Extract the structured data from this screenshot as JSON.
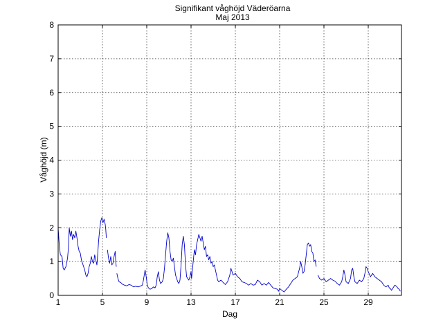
{
  "chart_data": {
    "type": "line",
    "title": "Signifikant våghöjd Väderöarna",
    "subtitle": "Maj 2013",
    "xlabel": "Dag",
    "ylabel": "Våghöjd (m)",
    "xlim": [
      1,
      32
    ],
    "ylim": [
      0,
      8
    ],
    "xticks": [
      1,
      5,
      9,
      13,
      17,
      21,
      25,
      29
    ],
    "yticks": [
      0,
      1,
      2,
      3,
      4,
      5,
      6,
      7,
      8
    ],
    "grid": true,
    "line_color": "#0000cc",
    "series": [
      {
        "segments": [
          [
            [
              1.0,
              2.0
            ],
            [
              1.1,
              1.5
            ],
            [
              1.2,
              1.2
            ],
            [
              1.35,
              1.15
            ],
            [
              1.45,
              0.8
            ],
            [
              1.55,
              0.75
            ],
            [
              1.7,
              0.85
            ],
            [
              1.85,
              1.1
            ],
            [
              1.95,
              1.5
            ],
            [
              2.0,
              2.0
            ],
            [
              2.1,
              1.75
            ],
            [
              2.2,
              1.9
            ],
            [
              2.3,
              1.65
            ],
            [
              2.4,
              1.8
            ],
            [
              2.5,
              1.7
            ],
            [
              2.6,
              1.9
            ],
            [
              2.7,
              1.7
            ],
            [
              2.8,
              1.45
            ],
            [
              2.9,
              1.3
            ],
            [
              3.0,
              1.25
            ],
            [
              3.1,
              1.05
            ],
            [
              3.2,
              0.95
            ],
            [
              3.3,
              0.85
            ],
            [
              3.4,
              0.75
            ],
            [
              3.5,
              0.6
            ],
            [
              3.6,
              0.55
            ],
            [
              3.7,
              0.65
            ],
            [
              3.8,
              0.85
            ],
            [
              3.9,
              0.95
            ],
            [
              4.0,
              1.15
            ],
            [
              4.1,
              1.0
            ],
            [
              4.2,
              0.95
            ],
            [
              4.3,
              1.2
            ],
            [
              4.4,
              1.05
            ],
            [
              4.5,
              0.9
            ],
            [
              4.55,
              1.1
            ],
            [
              4.65,
              1.6
            ],
            [
              4.75,
              1.95
            ],
            [
              4.85,
              2.2
            ],
            [
              4.95,
              2.3
            ],
            [
              5.05,
              2.15
            ],
            [
              5.15,
              2.25
            ],
            [
              5.25,
              2.1
            ],
            [
              5.3,
              1.95
            ],
            [
              5.35,
              1.7
            ]
          ],
          [
            [
              5.45,
              1.35
            ],
            [
              5.55,
              1.1
            ],
            [
              5.65,
              0.95
            ],
            [
              5.75,
              1.15
            ],
            [
              5.85,
              0.9
            ],
            [
              5.95,
              0.95
            ],
            [
              6.05,
              1.15
            ],
            [
              6.15,
              1.3
            ],
            [
              6.2,
              1.0
            ],
            [
              6.25,
              0.85
            ]
          ],
          [
            [
              6.3,
              0.65
            ],
            [
              6.4,
              0.5
            ],
            [
              6.5,
              0.4
            ],
            [
              6.65,
              0.38
            ],
            [
              6.8,
              0.33
            ],
            [
              7.0,
              0.3
            ],
            [
              7.2,
              0.28
            ],
            [
              7.4,
              0.32
            ],
            [
              7.6,
              0.3
            ],
            [
              7.8,
              0.25
            ],
            [
              8.0,
              0.27
            ],
            [
              8.2,
              0.25
            ],
            [
              8.4,
              0.27
            ],
            [
              8.6,
              0.3
            ],
            [
              8.7,
              0.45
            ],
            [
              8.8,
              0.65
            ],
            [
              8.85,
              0.75
            ],
            [
              8.95,
              0.55
            ],
            [
              9.05,
              0.3
            ],
            [
              9.15,
              0.22
            ],
            [
              9.3,
              0.18
            ],
            [
              9.45,
              0.2
            ],
            [
              9.6,
              0.25
            ],
            [
              9.75,
              0.22
            ],
            [
              9.85,
              0.3
            ],
            [
              9.95,
              0.55
            ],
            [
              10.05,
              0.7
            ],
            [
              10.15,
              0.45
            ],
            [
              10.25,
              0.35
            ],
            [
              10.4,
              0.4
            ],
            [
              10.5,
              0.5
            ],
            [
              10.6,
              0.8
            ],
            [
              10.7,
              1.2
            ],
            [
              10.8,
              1.6
            ],
            [
              10.9,
              1.85
            ],
            [
              11.0,
              1.7
            ],
            [
              11.1,
              1.3
            ],
            [
              11.2,
              1.05
            ],
            [
              11.3,
              1.0
            ],
            [
              11.4,
              1.1
            ],
            [
              11.5,
              0.85
            ],
            [
              11.6,
              0.6
            ],
            [
              11.7,
              0.5
            ],
            [
              11.8,
              0.4
            ],
            [
              11.9,
              0.35
            ],
            [
              12.0,
              0.45
            ],
            [
              12.1,
              0.9
            ],
            [
              12.2,
              1.5
            ],
            [
              12.3,
              1.75
            ],
            [
              12.4,
              1.5
            ],
            [
              12.5,
              0.9
            ],
            [
              12.6,
              0.55
            ],
            [
              12.7,
              0.5
            ],
            [
              12.8,
              0.45
            ],
            [
              12.9,
              0.55
            ],
            [
              13.0,
              0.7
            ],
            [
              13.05,
              0.5
            ],
            [
              13.15,
              0.85
            ],
            [
              13.3,
              1.35
            ],
            [
              13.4,
              1.2
            ],
            [
              13.5,
              1.5
            ],
            [
              13.6,
              1.65
            ],
            [
              13.7,
              1.8
            ],
            [
              13.8,
              1.7
            ],
            [
              13.9,
              1.6
            ],
            [
              14.0,
              1.75
            ],
            [
              14.1,
              1.55
            ],
            [
              14.2,
              1.35
            ],
            [
              14.3,
              1.45
            ],
            [
              14.4,
              1.15
            ],
            [
              14.5,
              1.2
            ],
            [
              14.6,
              1.05
            ],
            [
              14.7,
              1.15
            ],
            [
              14.8,
              0.95
            ],
            [
              14.9,
              1.0
            ],
            [
              15.0,
              0.85
            ],
            [
              15.1,
              0.9
            ],
            [
              15.2,
              0.75
            ],
            [
              15.3,
              0.6
            ],
            [
              15.4,
              0.45
            ],
            [
              15.5,
              0.4
            ],
            [
              15.7,
              0.45
            ],
            [
              15.9,
              0.38
            ],
            [
              16.1,
              0.32
            ],
            [
              16.3,
              0.4
            ],
            [
              16.5,
              0.6
            ],
            [
              16.6,
              0.8
            ],
            [
              16.7,
              0.7
            ],
            [
              16.8,
              0.6
            ],
            [
              17.0,
              0.65
            ],
            [
              17.2,
              0.55
            ],
            [
              17.4,
              0.5
            ],
            [
              17.6,
              0.4
            ],
            [
              17.8,
              0.38
            ],
            [
              18.0,
              0.35
            ],
            [
              18.2,
              0.3
            ],
            [
              18.4,
              0.35
            ],
            [
              18.6,
              0.3
            ],
            [
              18.8,
              0.32
            ],
            [
              19.0,
              0.45
            ],
            [
              19.2,
              0.4
            ],
            [
              19.4,
              0.3
            ],
            [
              19.6,
              0.35
            ],
            [
              19.8,
              0.3
            ],
            [
              20.0,
              0.38
            ],
            [
              20.2,
              0.3
            ],
            [
              20.4,
              0.22
            ],
            [
              20.6,
              0.2
            ],
            [
              20.8,
              0.18
            ],
            [
              20.9,
              0.12
            ],
            [
              21.0,
              0.2
            ],
            [
              21.2,
              0.15
            ],
            [
              21.4,
              0.1
            ],
            [
              21.6,
              0.18
            ],
            [
              21.8,
              0.25
            ],
            [
              22.0,
              0.35
            ],
            [
              22.2,
              0.45
            ],
            [
              22.4,
              0.5
            ],
            [
              22.6,
              0.55
            ],
            [
              22.8,
              0.8
            ],
            [
              22.9,
              1.0
            ],
            [
              23.0,
              0.85
            ],
            [
              23.1,
              0.65
            ],
            [
              23.2,
              0.7
            ],
            [
              23.3,
              0.9
            ],
            [
              23.4,
              1.2
            ],
            [
              23.5,
              1.5
            ],
            [
              23.6,
              1.55
            ],
            [
              23.7,
              1.45
            ],
            [
              23.8,
              1.5
            ],
            [
              23.9,
              1.3
            ],
            [
              24.0,
              1.25
            ],
            [
              24.1,
              1.0
            ],
            [
              24.2,
              1.05
            ],
            [
              24.3,
              0.85
            ]
          ],
          [
            [
              24.45,
              0.6
            ],
            [
              24.6,
              0.5
            ],
            [
              24.8,
              0.45
            ],
            [
              25.0,
              0.5
            ],
            [
              25.2,
              0.4
            ],
            [
              25.4,
              0.45
            ],
            [
              25.6,
              0.5
            ],
            [
              25.8,
              0.45
            ],
            [
              26.0,
              0.42
            ],
            [
              26.2,
              0.35
            ],
            [
              26.4,
              0.3
            ],
            [
              26.6,
              0.4
            ],
            [
              26.7,
              0.55
            ],
            [
              26.8,
              0.75
            ],
            [
              26.9,
              0.6
            ],
            [
              27.0,
              0.4
            ],
            [
              27.2,
              0.35
            ],
            [
              27.4,
              0.5
            ],
            [
              27.5,
              0.75
            ],
            [
              27.6,
              0.8
            ],
            [
              27.7,
              0.55
            ],
            [
              27.8,
              0.4
            ],
            [
              28.0,
              0.35
            ],
            [
              28.2,
              0.45
            ],
            [
              28.4,
              0.4
            ],
            [
              28.6,
              0.5
            ],
            [
              28.7,
              0.65
            ],
            [
              28.8,
              0.85
            ],
            [
              28.9,
              0.8
            ],
            [
              29.0,
              0.7
            ],
            [
              29.2,
              0.55
            ],
            [
              29.4,
              0.65
            ],
            [
              29.6,
              0.55
            ],
            [
              29.8,
              0.5
            ],
            [
              30.0,
              0.45
            ],
            [
              30.2,
              0.4
            ],
            [
              30.4,
              0.3
            ],
            [
              30.6,
              0.25
            ],
            [
              30.8,
              0.3
            ],
            [
              30.9,
              0.22
            ],
            [
              31.0,
              0.2
            ],
            [
              31.1,
              0.15
            ],
            [
              31.2,
              0.2
            ],
            [
              31.3,
              0.25
            ],
            [
              31.4,
              0.3
            ],
            [
              31.5,
              0.28
            ],
            [
              31.6,
              0.25
            ],
            [
              31.7,
              0.2
            ],
            [
              31.8,
              0.18
            ],
            [
              31.9,
              0.12
            ]
          ]
        ]
      }
    ]
  }
}
